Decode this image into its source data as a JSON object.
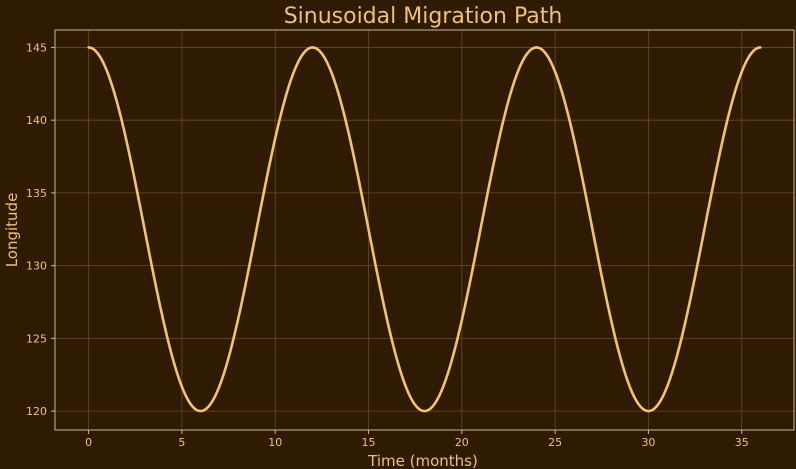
{
  "chart_data": {
    "type": "line",
    "title": "Sinusoidal Migration Path",
    "xlabel": "Time (months)",
    "ylabel": "Longitude",
    "xlim": [
      -1.8,
      37.8
    ],
    "ylim": [
      118.7,
      146.2
    ],
    "xticks": [
      0,
      5,
      10,
      15,
      20,
      25,
      30,
      35
    ],
    "yticks": [
      120,
      125,
      130,
      135,
      140,
      145
    ],
    "grid": true,
    "legend": "none",
    "series": [
      {
        "function": "132.5 + 12.5*cos(2*pi*x/12)",
        "x_range": [
          0,
          36
        ],
        "x": [
          0,
          3,
          6,
          9,
          12,
          15,
          18,
          21,
          24,
          27,
          30,
          33,
          36
        ],
        "y": [
          145,
          132.5,
          120,
          132.5,
          145,
          132.5,
          120,
          132.5,
          145,
          132.5,
          120,
          132.5,
          145
        ]
      }
    ],
    "colors": {
      "background": "#2e1b02",
      "line": "#f5c465",
      "text": "#f0c170",
      "axes": "#cdb79a",
      "grid": "#6b4a1f"
    }
  }
}
